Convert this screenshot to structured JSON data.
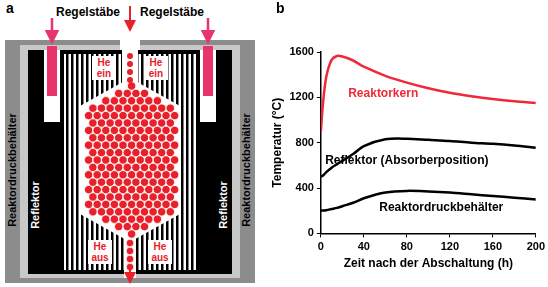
{
  "diagram": {
    "panel_label": "a",
    "control_rods": [
      "Regelstäbe",
      "Regelstäbe"
    ],
    "pressure_vessel": [
      "Reaktordruckbehälter",
      "Reaktordruckbehälter"
    ],
    "reflector": [
      "Reflektor",
      "Reflektor"
    ],
    "helium_in": [
      "He ein",
      "He ein"
    ],
    "helium_out": [
      "He aus",
      "He aus"
    ]
  },
  "chart_data": {
    "panel_label": "b",
    "type": "line",
    "x_label": "Zeit nach der Abschaltung (h)",
    "y_label": "Temperatur (°C)",
    "xlim": [
      0,
      200
    ],
    "xticks": [
      0,
      40,
      80,
      120,
      160,
      200
    ],
    "ylim": [
      0,
      1600
    ],
    "yticks": [
      0,
      400,
      800,
      1200,
      1600
    ],
    "grid": false,
    "x": [
      0,
      2,
      5,
      10,
      15,
      20,
      30,
      40,
      60,
      80,
      100,
      120,
      140,
      160,
      180,
      200
    ],
    "series": [
      {
        "name": "Reaktorkern",
        "color": "#ee2a3a",
        "values": [
          900,
          1150,
          1380,
          1530,
          1565,
          1560,
          1525,
          1470,
          1390,
          1330,
          1280,
          1240,
          1210,
          1185,
          1165,
          1150
        ]
      },
      {
        "name": "Reflektor (Absorberposition)",
        "color": "#000000",
        "values": [
          500,
          510,
          540,
          580,
          610,
          640,
          700,
          770,
          830,
          835,
          825,
          815,
          800,
          790,
          775,
          755
        ]
      },
      {
        "name": "Reaktordruckbehälter",
        "color": "#000000",
        "values": [
          200,
          202,
          205,
          215,
          225,
          240,
          270,
          310,
          360,
          375,
          370,
          360,
          345,
          330,
          315,
          300
        ]
      }
    ]
  }
}
